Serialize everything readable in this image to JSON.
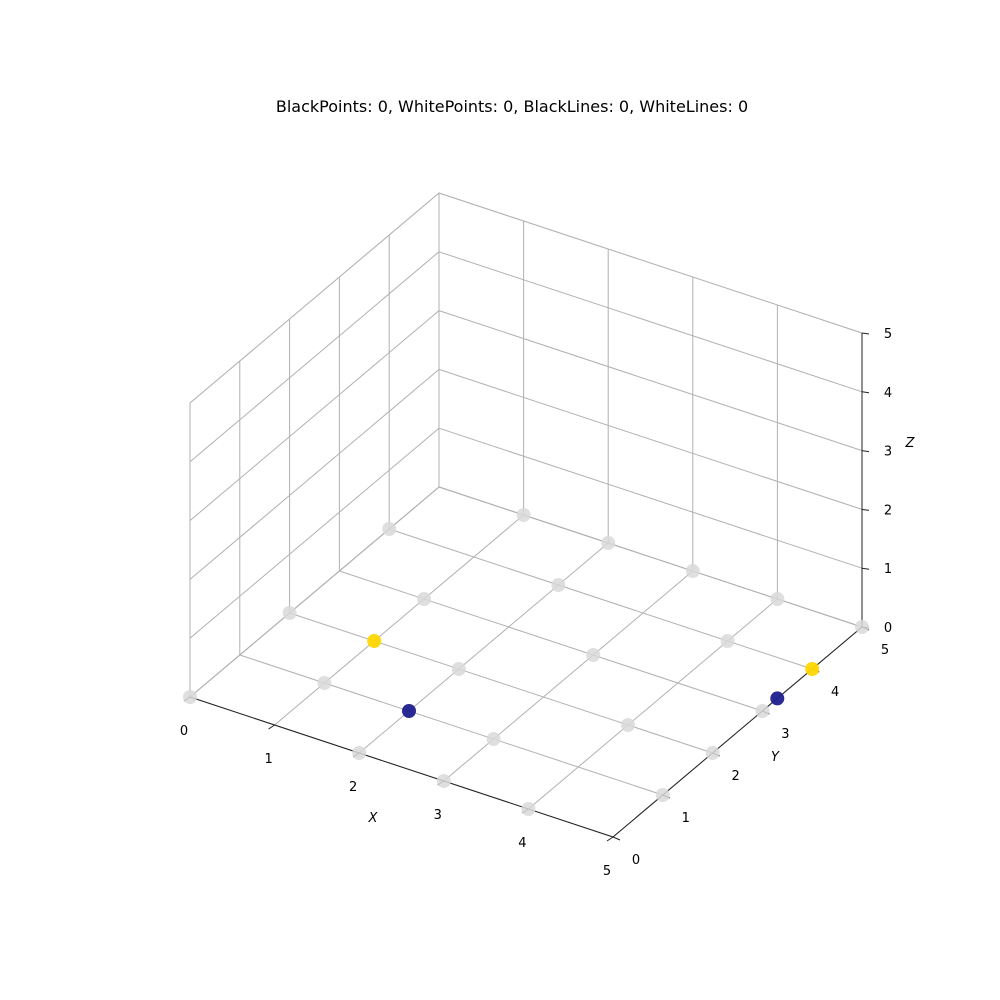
{
  "chart_data": {
    "type": "scatter",
    "title": "BlackPoints: 0, WhitePoints: 0, BlackLines: 0, WhiteLines: 0",
    "xlabel": "X",
    "ylabel": "Y",
    "zlabel": "Z",
    "xlim": [
      0,
      5
    ],
    "ylim": [
      0,
      5
    ],
    "zlim": [
      0,
      5
    ],
    "xticks": [
      "0",
      "1",
      "2",
      "3",
      "4",
      "5"
    ],
    "yticks": [
      "0",
      "1",
      "2",
      "3",
      "4",
      "5"
    ],
    "zticks": [
      "0",
      "1",
      "2",
      "3",
      "4",
      "5"
    ],
    "grid": true,
    "series": [
      {
        "color": "#d9d9d9",
        "points": [
          [
            1,
            1,
            0
          ],
          [
            1,
            3,
            0
          ],
          [
            2,
            4,
            0
          ],
          [
            3,
            3,
            0
          ],
          [
            3,
            1,
            0
          ],
          [
            2,
            2,
            0
          ],
          [
            0,
            4,
            0
          ],
          [
            0,
            2,
            0
          ],
          [
            1,
            5,
            0
          ],
          [
            2,
            0,
            0
          ],
          [
            3,
            5,
            0
          ],
          [
            4,
            4,
            0
          ],
          [
            4,
            2,
            0
          ],
          [
            4,
            0,
            0
          ],
          [
            5,
            3,
            0
          ],
          [
            5,
            1,
            0
          ],
          [
            0,
            0,
            0
          ],
          [
            2,
            5,
            0
          ],
          [
            4,
            5,
            0
          ],
          [
            5,
            5,
            0
          ],
          [
            3,
            0,
            0
          ],
          [
            5,
            2,
            0
          ]
        ]
      },
      {
        "color": "#ffd700",
        "points": [
          [
            1,
            2,
            0
          ],
          [
            5,
            4,
            0
          ]
        ]
      },
      {
        "color": "#1f1f8f",
        "points": [
          [
            2,
            1,
            0
          ],
          [
            5,
            3.3,
            0
          ]
        ]
      }
    ]
  }
}
